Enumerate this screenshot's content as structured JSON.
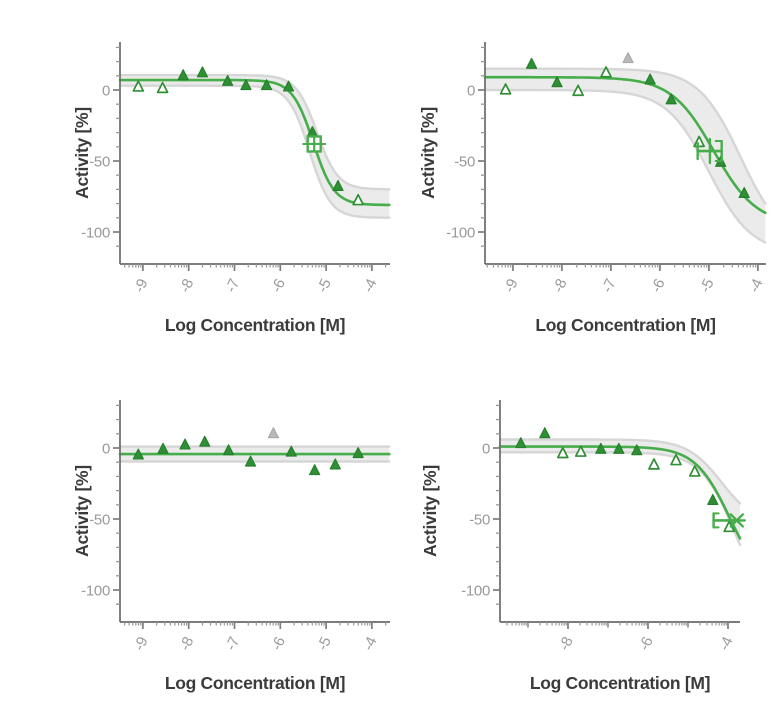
{
  "figure_title": "",
  "colors": {
    "curve": "#47ad4b",
    "point_fill": "#2f8f34",
    "point_edge": "#27802c",
    "point_open_fill": "#ffffff",
    "point_gray": "#b8b8b8",
    "point_gray_edge": "#a9a9a9",
    "band_fill": "#ebebeb",
    "band_edge": "#d6d6d6",
    "axis_line": "#6a6a6a",
    "major_tick": "#7c7c7c",
    "minor_tick": "#969696",
    "tick_label": "#9a9a9a",
    "axis_title": "#3b3b3b"
  },
  "chart_data": [
    {
      "type": "scatter",
      "subtype": "dose-response-fit",
      "position": "top-left",
      "xlabel": "Log Concentration [M]",
      "ylabel": "Activity [%]",
      "xlim": [
        -9.5,
        -3.6
      ],
      "ylim": [
        -122,
        34
      ],
      "grid": false,
      "legend": "none",
      "xticks": [
        {
          "v": -9,
          "label": "-9"
        },
        {
          "v": -8,
          "label": "-8"
        },
        {
          "v": -7,
          "label": "-7"
        },
        {
          "v": -6,
          "label": "-6"
        },
        {
          "v": -5,
          "label": "-5"
        },
        {
          "v": -4,
          "label": "-4"
        }
      ],
      "yticks": [
        {
          "v": 0,
          "label": "0"
        },
        {
          "v": -50,
          "label": "-50"
        },
        {
          "v": -100,
          "label": "-100"
        }
      ],
      "points": [
        {
          "x": -9.1,
          "y": 2,
          "style": "open"
        },
        {
          "x": -8.57,
          "y": 1,
          "style": "open"
        },
        {
          "x": -8.12,
          "y": 10,
          "style": "filled"
        },
        {
          "x": -7.7,
          "y": 12,
          "style": "filled"
        },
        {
          "x": -7.15,
          "y": 6,
          "style": "filled"
        },
        {
          "x": -6.75,
          "y": 3,
          "style": "filled"
        },
        {
          "x": -6.3,
          "y": 3,
          "style": "filled"
        },
        {
          "x": -5.82,
          "y": 2,
          "style": "filled"
        },
        {
          "x": -5.3,
          "y": -30,
          "style": "filled"
        },
        {
          "x": -4.74,
          "y": -68,
          "style": "filled"
        },
        {
          "x": -4.3,
          "y": -78,
          "style": "open"
        }
      ],
      "fit": {
        "top": 7,
        "bottom": -81,
        "logec50": -5.28,
        "hill": 1.9
      },
      "band_upper": {
        "top": 10.5,
        "bottom": -70,
        "logec50": -5.2,
        "hill": 1.9
      },
      "band_lower": {
        "top": 3,
        "bottom": -90,
        "logec50": -5.36,
        "hill": 1.9
      },
      "ec50_marker": {
        "type": "square_cross",
        "x": -5.26,
        "y": -38
      }
    },
    {
      "type": "scatter",
      "subtype": "dose-response-fit",
      "position": "top-right",
      "xlabel": "Log Concentration [M]",
      "ylabel": "Activity [%]",
      "xlim": [
        -9.57,
        -3.84
      ],
      "ylim": [
        -122,
        34
      ],
      "grid": false,
      "legend": "none",
      "xticks": [
        {
          "v": -9,
          "label": "-9"
        },
        {
          "v": -8,
          "label": "-8"
        },
        {
          "v": -7,
          "label": "-7"
        },
        {
          "v": -6,
          "label": "-6"
        },
        {
          "v": -5,
          "label": "-5"
        },
        {
          "v": -4,
          "label": "-4"
        }
      ],
      "yticks": [
        {
          "v": 0,
          "label": "0"
        },
        {
          "v": -50,
          "label": "-50"
        },
        {
          "v": -100,
          "label": "-100"
        }
      ],
      "points": [
        {
          "x": -9.15,
          "y": 0,
          "style": "open"
        },
        {
          "x": -8.62,
          "y": 18,
          "style": "filled"
        },
        {
          "x": -8.1,
          "y": 5,
          "style": "filled"
        },
        {
          "x": -7.67,
          "y": -1,
          "style": "open"
        },
        {
          "x": -7.1,
          "y": 12,
          "style": "open"
        },
        {
          "x": -6.65,
          "y": 22,
          "style": "gray"
        },
        {
          "x": -6.2,
          "y": 7,
          "style": "filled"
        },
        {
          "x": -5.77,
          "y": -7,
          "style": "filled"
        },
        {
          "x": -5.2,
          "y": -37,
          "style": "open"
        },
        {
          "x": -4.76,
          "y": -51,
          "style": "filled"
        },
        {
          "x": -4.28,
          "y": -73,
          "style": "filled"
        }
      ],
      "fit": {
        "top": 9,
        "bottom": -95,
        "logec50": -4.9,
        "hill": 1.0
      },
      "band_upper": {
        "top": 15,
        "bottom": -110,
        "logec50": -4.35,
        "hill": 1.0
      },
      "band_lower": {
        "top": 0,
        "bottom": -115,
        "logec50": -5.0,
        "hill": 1.0
      },
      "ec50_marker": {
        "type": "hbar",
        "x": -4.98,
        "y": -43,
        "xlo": -5.23,
        "xhi": -4.74
      }
    },
    {
      "type": "scatter",
      "subtype": "dose-response-flat",
      "position": "bottom-left",
      "xlabel": "Log Concentration [M]",
      "ylabel": "Activity [%]",
      "xlim": [
        -9.5,
        -3.6
      ],
      "ylim": [
        -122,
        34
      ],
      "grid": false,
      "legend": "none",
      "xticks": [
        {
          "v": -9,
          "label": "-9"
        },
        {
          "v": -8,
          "label": "-8"
        },
        {
          "v": -7,
          "label": "-7"
        },
        {
          "v": -6,
          "label": "-6"
        },
        {
          "v": -5,
          "label": "-5"
        },
        {
          "v": -4,
          "label": "-4"
        }
      ],
      "yticks": [
        {
          "v": 0,
          "label": "0"
        },
        {
          "v": -50,
          "label": "-50"
        },
        {
          "v": -100,
          "label": "-100"
        }
      ],
      "points": [
        {
          "x": -9.1,
          "y": -5,
          "style": "filled"
        },
        {
          "x": -8.56,
          "y": -1,
          "style": "filled"
        },
        {
          "x": -8.08,
          "y": 2,
          "style": "filled"
        },
        {
          "x": -7.65,
          "y": 4,
          "style": "filled"
        },
        {
          "x": -7.13,
          "y": -2,
          "style": "filled"
        },
        {
          "x": -6.65,
          "y": -10,
          "style": "filled"
        },
        {
          "x": -6.15,
          "y": 10,
          "style": "gray"
        },
        {
          "x": -5.76,
          "y": -3,
          "style": "filled"
        },
        {
          "x": -5.25,
          "y": -16,
          "style": "filled"
        },
        {
          "x": -4.8,
          "y": -12,
          "style": "filled"
        },
        {
          "x": -4.3,
          "y": -4,
          "style": "filled"
        }
      ],
      "fit": {
        "top": -4.3,
        "bottom": -4.3,
        "logec50": -6,
        "hill": 1.0
      },
      "band_upper": {
        "top": 1,
        "bottom": 1,
        "logec50": -6,
        "hill": 1.0
      },
      "band_lower": {
        "top": -9.5,
        "bottom": -9.5,
        "logec50": -6,
        "hill": 1.0
      },
      "ec50_marker": null
    },
    {
      "type": "scatter",
      "subtype": "dose-response-fit",
      "position": "bottom-right",
      "xlabel": "Log Concentration [M]",
      "ylabel": "Activity [%]",
      "xlim": [
        -9.7,
        -3.7
      ],
      "ylim": [
        -122,
        34
      ],
      "grid": false,
      "legend": "none",
      "xticks": [
        {
          "v": -8,
          "label": "-8"
        },
        {
          "v": -6,
          "label": "-6"
        },
        {
          "v": -4,
          "label": "-4"
        }
      ],
      "decade_ticks": [
        -9,
        -7,
        -5
      ],
      "yticks": [
        {
          "v": 0,
          "label": "0"
        },
        {
          "v": -50,
          "label": "-50"
        },
        {
          "v": -100,
          "label": "-100"
        }
      ],
      "points": [
        {
          "x": -9.18,
          "y": 3,
          "style": "filled"
        },
        {
          "x": -8.58,
          "y": 10,
          "style": "filled"
        },
        {
          "x": -8.13,
          "y": -4,
          "style": "open"
        },
        {
          "x": -7.68,
          "y": -3,
          "style": "open"
        },
        {
          "x": -7.18,
          "y": -1,
          "style": "filled"
        },
        {
          "x": -6.73,
          "y": -1,
          "style": "filled"
        },
        {
          "x": -6.28,
          "y": -2,
          "style": "filled"
        },
        {
          "x": -5.85,
          "y": -12,
          "style": "open"
        },
        {
          "x": -5.3,
          "y": -9,
          "style": "open"
        },
        {
          "x": -4.83,
          "y": -17,
          "style": "open"
        },
        {
          "x": -4.38,
          "y": -37,
          "style": "filled"
        },
        {
          "x": -3.97,
          "y": -56,
          "style": "open"
        }
      ],
      "fit": {
        "top": 1,
        "bottom": -100,
        "logec50": -3.95,
        "hill": 1.0
      },
      "band_upper": {
        "top": 6,
        "bottom": -55,
        "logec50": -4.15,
        "hill": 1.0
      },
      "band_lower": {
        "top": -3,
        "bottom": -120,
        "logec50": -3.8,
        "hill": 1.0
      },
      "ec50_marker": {
        "type": "hbar_star",
        "x": -3.78,
        "y": -51,
        "xlo": -4.36,
        "xhi": -3.78
      }
    }
  ]
}
